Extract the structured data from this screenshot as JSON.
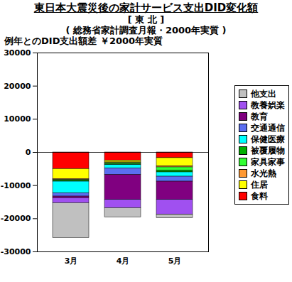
{
  "chart_data": {
    "type": "bar",
    "title": "東日本大震災後の家計サービス支出DID変化額",
    "subtitle": [
      "[ 東 北 ]",
      "( 総務省家計調査月報・2000年実質 )"
    ],
    "y_label": "例年とのDID支出額差 ￥2000年実質",
    "categories": [
      "3月",
      "4月",
      "5月"
    ],
    "stacked": true,
    "legend": "right",
    "grid": false,
    "ylim": [
      -30000,
      30000
    ],
    "yticks": [
      -30000,
      -20000,
      -10000,
      0,
      10000,
      20000,
      30000
    ],
    "series": [
      {
        "name": "他支出",
        "color": "#c0c0c0",
        "values": [
          -10500,
          -2800,
          -1000
        ]
      },
      {
        "name": "教養娯楽",
        "color": "#a050f0",
        "values": [
          -1500,
          -2500,
          -4500
        ]
      },
      {
        "name": "教育",
        "color": "#800080",
        "values": [
          -500,
          -7500,
          -5500
        ]
      },
      {
        "name": "交通通信",
        "color": "#5a6ef0",
        "values": [
          -1000,
          -2000,
          -1500
        ]
      },
      {
        "name": "保健医療",
        "color": "#00ffff",
        "values": [
          -3500,
          -1000,
          -1300
        ]
      },
      {
        "name": "被覆履物",
        "color": "#00b000",
        "values": [
          -300,
          -300,
          -500
        ]
      },
      {
        "name": "家具家事",
        "color": "#33ff33",
        "values": [
          -200,
          -300,
          -1000
        ]
      },
      {
        "name": "水光熱",
        "color": "#ff9933",
        "values": [
          -300,
          -200,
          -300
        ]
      },
      {
        "name": "住居",
        "color": "#ffff00",
        "values": [
          -3000,
          -500,
          -2500
        ]
      },
      {
        "name": "食料",
        "color": "#ff0000",
        "values": [
          -5000,
          -2500,
          -1700
        ]
      }
    ]
  }
}
